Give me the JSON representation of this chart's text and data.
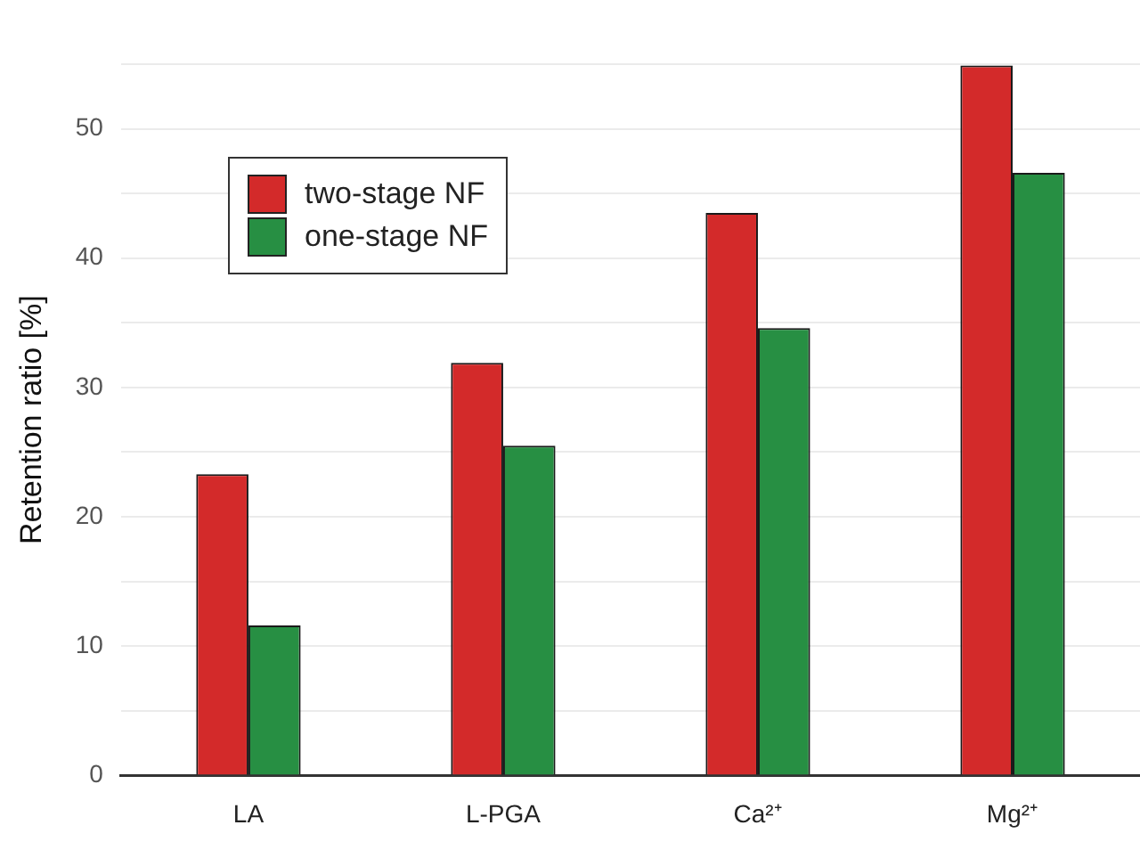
{
  "chart_data": {
    "type": "bar",
    "ylabel": "Retention ratio [%]",
    "categories": [
      "LA",
      "L-PGA",
      "Ca²⁺",
      "Mg²⁺"
    ],
    "series": [
      {
        "name": "two-stage NF",
        "color": "#d32a2a",
        "values": [
          23.3,
          31.9,
          43.5,
          54.9
        ]
      },
      {
        "name": "one-stage NF",
        "color": "#278f43",
        "values": [
          11.6,
          25.5,
          34.6,
          46.6
        ]
      }
    ],
    "ylim": [
      0,
      55
    ],
    "yticks": [
      0,
      {
        "value": 5,
        "label": null
      },
      10,
      {
        "value": 15,
        "label": null
      },
      20,
      {
        "value": 25,
        "label": null
      },
      30,
      {
        "value": 35,
        "label": null
      },
      40,
      {
        "value": 45,
        "label": null
      },
      50,
      {
        "value": 55,
        "label": null
      }
    ],
    "grid": "y",
    "legend": "top left"
  }
}
